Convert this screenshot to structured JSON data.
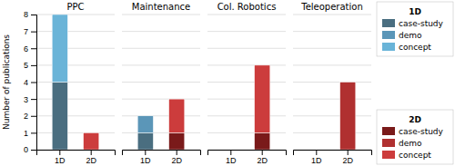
{
  "chart_data": [
    {
      "type": "bar",
      "title": "PPC",
      "categories": [
        "1D",
        "2D"
      ],
      "stacked": true,
      "y_label": "Number of publications",
      "series": [
        {
          "name": "case-study",
          "colors": [
            "#4a6e80",
            "#7a1a1a"
          ],
          "values": [
            4,
            0
          ]
        },
        {
          "name": "demo",
          "colors": [
            "#5b96b8",
            "#b03030"
          ],
          "values": [
            0,
            0
          ]
        },
        {
          "name": "concept",
          "colors": [
            "#6ab4d8",
            "#cc3c3c"
          ],
          "values": [
            4,
            1
          ]
        }
      ],
      "ylim": [
        0,
        8
      ],
      "yticks": [
        0,
        1,
        2,
        3,
        4,
        5,
        6,
        7,
        8
      ],
      "grid": true,
      "legend": "right"
    },
    {
      "type": "bar",
      "title": "Maintenance",
      "categories": [
        "1D",
        "2D"
      ],
      "stacked": true,
      "series": [
        {
          "name": "case-study",
          "colors": [
            "#4a6e80",
            "#7a1a1a"
          ],
          "values": [
            1,
            1
          ]
        },
        {
          "name": "demo",
          "colors": [
            "#5b96b8",
            "#b03030"
          ],
          "values": [
            1,
            0
          ]
        },
        {
          "name": "concept",
          "colors": [
            "#6ab4d8",
            "#cc3c3c"
          ],
          "values": [
            0,
            2
          ]
        }
      ],
      "ylim": [
        0,
        8
      ],
      "yticks": [
        0,
        1,
        2,
        3,
        4,
        5,
        6,
        7,
        8
      ],
      "grid": true,
      "tick_labels": "x"
    },
    {
      "type": "bar",
      "title": "Col. Robotics",
      "categories": [
        "1D",
        "2D"
      ],
      "stacked": true,
      "series": [
        {
          "name": "case-study",
          "colors": [
            "#4a6e80",
            "#7a1a1a"
          ],
          "values": [
            0,
            1
          ]
        },
        {
          "name": "demo",
          "colors": [
            "#5b96b8",
            "#b03030"
          ],
          "values": [
            0,
            0
          ]
        },
        {
          "name": "concept",
          "colors": [
            "#6ab4d8",
            "#cc3c3c"
          ],
          "values": [
            0,
            4
          ]
        }
      ],
      "ylim": [
        0,
        8
      ],
      "yticks": [
        0,
        1,
        2,
        3,
        4,
        5,
        6,
        7,
        8
      ],
      "grid": true,
      "tick_labels": "x"
    },
    {
      "type": "bar",
      "title": "Teleoperation",
      "categories": [
        "1D",
        "2D"
      ],
      "stacked": true,
      "series": [
        {
          "name": "case-study",
          "colors": [
            "#4a6e80",
            "#7a1a1a"
          ],
          "values": [
            0,
            0
          ]
        },
        {
          "name": "demo",
          "colors": [
            "#5b96b8",
            "#b03030"
          ],
          "values": [
            0,
            4
          ]
        },
        {
          "name": "concept",
          "colors": [
            "#6ab4d8",
            "#cc3c3c"
          ],
          "values": [
            0,
            0
          ]
        }
      ],
      "ylim": [
        0,
        8
      ],
      "yticks": [
        0,
        1,
        2,
        3,
        4,
        5,
        6,
        7,
        8
      ],
      "grid": true,
      "tick_labels": "x"
    }
  ]
}
